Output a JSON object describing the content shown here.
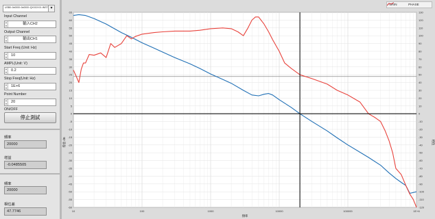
{
  "panel": {
    "device": "USB0::0x0000::0x0000::QXXXXXX::INSTR",
    "input_channel_label": "Input Channel",
    "input_channel_value": "輸入CH2",
    "output_channel_label": "Output Channel",
    "output_channel_value": "輸出CH1",
    "start_freq_label": "Start Freq (Unit: Hz)",
    "start_freq_value": "10",
    "ampl_label": "AMPL(Unit: V)",
    "ampl_value": "0.2",
    "stop_freq_label": "Stop Freq(Unit: Hz)",
    "stop_freq_value": "1E+6",
    "point_number_label": "Point Number",
    "point_number_value": "20",
    "onoff_label": "ON/OFF",
    "stop_button": "停止測試",
    "freq_label": "頻率",
    "freq_value": "20000",
    "gain_label": "增益",
    "gain_value": "-0.0485505",
    "freq2_label": "頻率",
    "freq2_value": "20000",
    "phase_label": "相位差",
    "phase_value": "47.7746"
  },
  "chart_data": {
    "type": "line",
    "xlabel": "頻率",
    "ylabel_left": "增益 dB",
    "ylabel_right": "相位",
    "x_scale": "log",
    "xlim": [
      10,
      1000000
    ],
    "x_ticks": [
      10,
      100,
      1000,
      10000,
      100000,
      1000000
    ],
    "x_tick_labels": [
      "10",
      "100",
      "1000",
      "10000",
      "100000",
      "1E+6"
    ],
    "ylim_left": [
      -60,
      65
    ],
    "y_ticks_left": [
      65,
      60,
      55,
      50,
      45,
      40,
      35,
      30,
      25,
      20,
      15,
      10,
      5,
      0,
      -5,
      -10,
      -15,
      -20,
      -25,
      -30,
      -35,
      -40,
      -45,
      -50,
      -55,
      -60
    ],
    "ylim_right": [
      -120,
      130
    ],
    "y_ticks_right": [
      130,
      120,
      110,
      100,
      90,
      80,
      70,
      60,
      50,
      40,
      30,
      20,
      10,
      0,
      -10,
      -20,
      -30,
      -40,
      -50,
      -60,
      -70,
      -80,
      -90,
      -100,
      -110,
      -120
    ],
    "grid": true,
    "legend_position": "top-right",
    "cursor": {
      "x": 20000,
      "y_left": 0,
      "y_right": 47.7746
    },
    "series": [
      {
        "name": "GAIN",
        "color": "#1f6fb5",
        "axis": "left",
        "x": [
          10,
          12,
          15,
          20,
          30,
          50,
          70,
          100,
          150,
          200,
          300,
          500,
          700,
          1000,
          1500,
          2000,
          3000,
          4000,
          5000,
          6000,
          7000,
          8000,
          10000,
          15000,
          20000,
          30000,
          50000,
          70000,
          100000,
          200000,
          300000,
          400000,
          500000,
          600000,
          700000,
          800000,
          1000000
        ],
        "values": [
          63,
          63.5,
          63,
          61,
          57.5,
          52,
          49,
          45.5,
          42,
          39.5,
          36,
          32,
          29,
          25.5,
          22,
          19.5,
          15,
          12,
          11.5,
          12.5,
          13,
          12,
          9,
          4,
          0,
          -5,
          -11,
          -15.5,
          -20,
          -28,
          -33,
          -38,
          -41.5,
          -44,
          -46,
          -51,
          -50
        ]
      },
      {
        "name": "PHASE",
        "color": "#e8423b",
        "axis": "right",
        "x": [
          10,
          11,
          12,
          13,
          14,
          15,
          17,
          20,
          25,
          30,
          35,
          40,
          50,
          60,
          70,
          80,
          100,
          150,
          200,
          300,
          500,
          700,
          1000,
          1500,
          2000,
          2500,
          3000,
          3500,
          4000,
          4500,
          5000,
          6000,
          7000,
          8000,
          10000,
          12000,
          15000,
          20000,
          30000,
          50000,
          70000,
          100000,
          150000,
          200000,
          250000,
          300000,
          350000,
          400000,
          450000,
          500000,
          600000,
          700000,
          800000,
          900000,
          1000000
        ],
        "values": [
          56,
          48,
          40,
          57,
          65,
          65,
          76,
          75,
          78,
          72,
          90,
          85,
          90,
          100,
          96,
          99,
          102,
          104,
          105,
          106,
          106,
          107,
          109,
          110,
          109,
          105,
          100,
          110,
          120,
          124,
          124,
          115,
          105,
          95,
          80,
          65,
          58,
          50,
          45,
          38,
          30,
          24,
          15,
          0,
          -5,
          -10,
          -22,
          -35,
          -50,
          -70,
          -78,
          -92,
          -103,
          -110,
          -120
        ]
      }
    ]
  }
}
